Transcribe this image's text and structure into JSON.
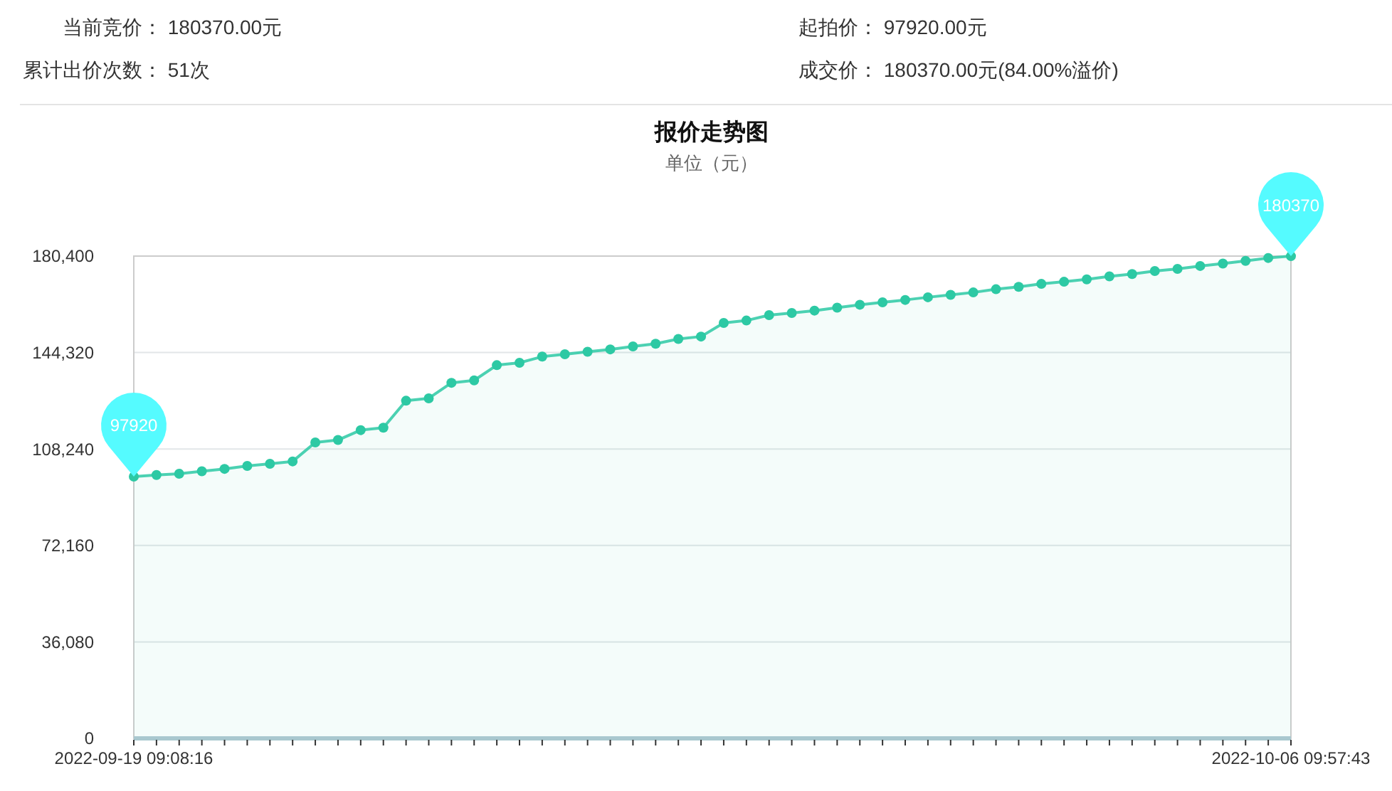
{
  "chart_data": {
    "type": "area",
    "title": "报价走势图",
    "subtitle": "单位（元）",
    "categories": [
      "2022-09-19 09:08:16",
      null,
      null,
      null,
      null,
      null,
      null,
      null,
      null,
      null,
      null,
      null,
      null,
      null,
      null,
      null,
      null,
      null,
      null,
      null,
      null,
      null,
      null,
      null,
      null,
      null,
      null,
      null,
      null,
      null,
      null,
      null,
      null,
      null,
      null,
      null,
      null,
      null,
      null,
      null,
      null,
      null,
      null,
      null,
      null,
      null,
      null,
      null,
      null,
      null,
      null,
      "2022-10-06 09:57:43"
    ],
    "series": [
      {
        "color": "#2dc9a4",
        "values": [
          97920,
          98500,
          99000,
          99900,
          100800,
          101900,
          102700,
          103600,
          110700,
          111600,
          115300,
          116200,
          126300,
          127200,
          133000,
          133900,
          139600,
          140500,
          142800,
          143700,
          144600,
          145500,
          146600,
          147600,
          149400,
          150300,
          155400,
          156300,
          158300,
          159100,
          160000,
          161100,
          162200,
          163100,
          164000,
          165000,
          165900,
          166800,
          168000,
          168900,
          170000,
          170800,
          171700,
          172800,
          173700,
          174800,
          175600,
          176700,
          177600,
          178600,
          179700,
          180370
        ]
      }
    ],
    "ylim": [
      0,
      180400
    ],
    "yticks": [
      0,
      {
        "value": 36080,
        "label": "36,080"
      },
      {
        "value": 72160,
        "label": "72,160"
      },
      {
        "value": 108240,
        "label": "108,240"
      },
      {
        "value": 144320,
        "label": "144,320"
      },
      {
        "value": 180400,
        "label": "180,400"
      }
    ],
    "grid": "y",
    "marker": "circle",
    "annotations": [
      "当前竞价： 180370.00元",
      "起拍价： 97920.00元",
      "累计出价次数： 51次",
      "成交价： 180370.00元(84.00%溢价)",
      {
        "text": "97920",
        "x": "2022-09-19 09:08:16",
        "y": 97920
      },
      {
        "text": "180370",
        "x": "2022-10-06 09:57:43",
        "y": 180370
      }
    ]
  }
}
